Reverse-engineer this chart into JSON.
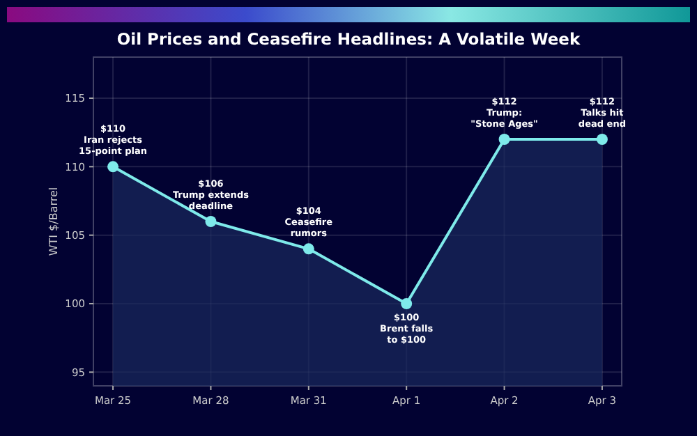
{
  "chart_data": {
    "type": "area",
    "title": "Oil Prices and Ceasefire Headlines: A Volatile Week",
    "ylabel": "WTI $/Barrel",
    "categories": [
      "Mar 25",
      "Mar 28",
      "Mar 31",
      "Apr 1",
      "Apr 2",
      "Apr 3"
    ],
    "series": [
      {
        "color": "#7eeaea",
        "values": [
          110,
          106,
          104,
          100,
          112,
          112
        ]
      }
    ],
    "ylim": [
      94,
      118
    ],
    "yticks": [
      95,
      100,
      105,
      110,
      115
    ],
    "grid": true,
    "marker": "circle",
    "line_style": "solid",
    "annotations": [
      {
        "text": "$110\nIran rejects\n15-point plan",
        "x": "Mar 25",
        "y": 110
      },
      {
        "text": "$106\nTrump extends\ndeadline",
        "x": "Mar 28",
        "y": 106
      },
      {
        "text": "$104\nCeasefire\nrumors",
        "x": "Mar 31",
        "y": 104
      },
      {
        "text": "$100\nBrent falls\nto $100",
        "x": "Apr 1",
        "y": 100
      },
      {
        "text": "$112\nTrump:\n\"Stone Ages\"",
        "x": "Apr 2",
        "y": 112
      },
      {
        "text": "$112\nTalks hit\ndead end",
        "x": "Apr 3",
        "y": 112
      }
    ]
  }
}
